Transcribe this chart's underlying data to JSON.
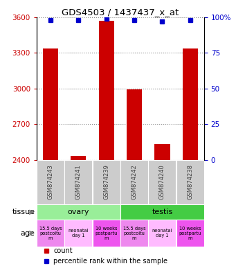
{
  "title": "GDS4503 / 1437437_x_at",
  "samples": [
    "GSM874243",
    "GSM874241",
    "GSM874239",
    "GSM874242",
    "GSM874240",
    "GSM874238"
  ],
  "counts": [
    3340,
    2430,
    3570,
    2990,
    2530,
    3340
  ],
  "percentile_ranks": [
    98,
    98,
    99,
    98,
    97,
    98
  ],
  "ylim_left": [
    2400,
    3600
  ],
  "ylim_right": [
    0,
    100
  ],
  "yticks_left": [
    2400,
    2700,
    3000,
    3300,
    3600
  ],
  "yticks_right": [
    0,
    25,
    50,
    75,
    100
  ],
  "bar_color": "#cc0000",
  "dot_color": "#0000cc",
  "bar_width": 0.55,
  "tissue_labels": [
    {
      "label": "ovary",
      "span": [
        0,
        3
      ],
      "color": "#99ee99"
    },
    {
      "label": "testis",
      "span": [
        3,
        6
      ],
      "color": "#44cc44"
    }
  ],
  "age_labels": [
    {
      "label": "15.5 days\npostcoitu\nm",
      "idx": 0,
      "color": "#ee88ee"
    },
    {
      "label": "neonatal\nday 1",
      "idx": 1,
      "color": "#ffbbff"
    },
    {
      "label": "10 weeks\npostpartu\nm",
      "idx": 2,
      "color": "#ee55ee"
    },
    {
      "label": "15.5 days\npostcoitu\nm",
      "idx": 3,
      "color": "#ee88ee"
    },
    {
      "label": "neonatal\nday 1",
      "idx": 4,
      "color": "#ffbbff"
    },
    {
      "label": "10 weeks\npostpartu\nm",
      "idx": 5,
      "color": "#ee55ee"
    }
  ],
  "sample_label_color": "#444444",
  "sample_bg_color": "#cccccc",
  "left_axis_color": "#cc0000",
  "right_axis_color": "#0000cc",
  "grid_color": "#888888",
  "bg_color": "#ffffff",
  "legend_items": [
    {
      "color": "#cc0000",
      "label": "count"
    },
    {
      "color": "#0000cc",
      "label": "percentile rank within the sample"
    }
  ]
}
